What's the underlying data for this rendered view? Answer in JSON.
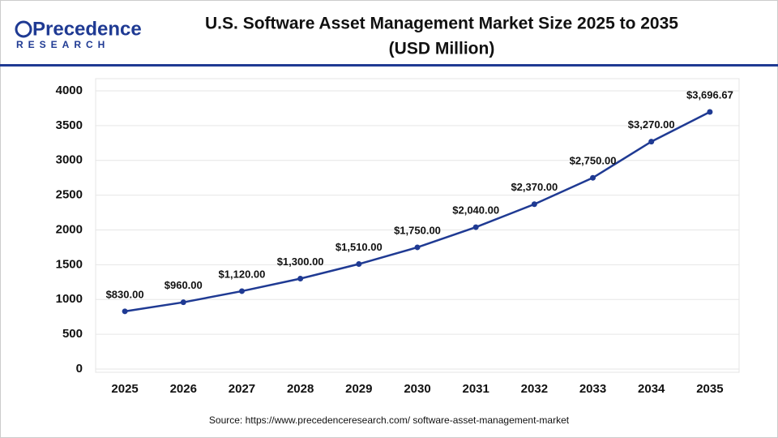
{
  "logo": {
    "name": "Precedence",
    "tagline": "RESEARCH"
  },
  "chart_data": {
    "type": "line",
    "title": "U.S. Software Asset Management Market Size 2025 to 2035",
    "subtitle": "(USD Million)",
    "categories": [
      "2025",
      "2026",
      "2027",
      "2028",
      "2029",
      "2030",
      "2031",
      "2032",
      "2033",
      "2034",
      "2035"
    ],
    "series": [
      {
        "name": "U.S. Software Asset Management Market Size",
        "color": "#1f3a93",
        "values": [
          830,
          960,
          1120,
          1300,
          1510,
          1750,
          2040,
          2370,
          2750,
          3270,
          3696.67
        ],
        "value_labels": [
          "$830.00",
          "$960.00",
          "$1,120.00",
          "$1,300.00",
          "$1,510.00",
          "$1,750.00",
          "$2,040.00",
          "$2,370.00",
          "$2,750.00",
          "$3,270.00",
          "$3,696.67"
        ]
      }
    ],
    "ylim": [
      0,
      4000
    ],
    "yticks": [
      0,
      500,
      1000,
      1500,
      2000,
      2500,
      3000,
      3500,
      4000
    ],
    "grid": true,
    "source": "Source: https://www.precedenceresearch.com/ software-asset-management-market"
  }
}
